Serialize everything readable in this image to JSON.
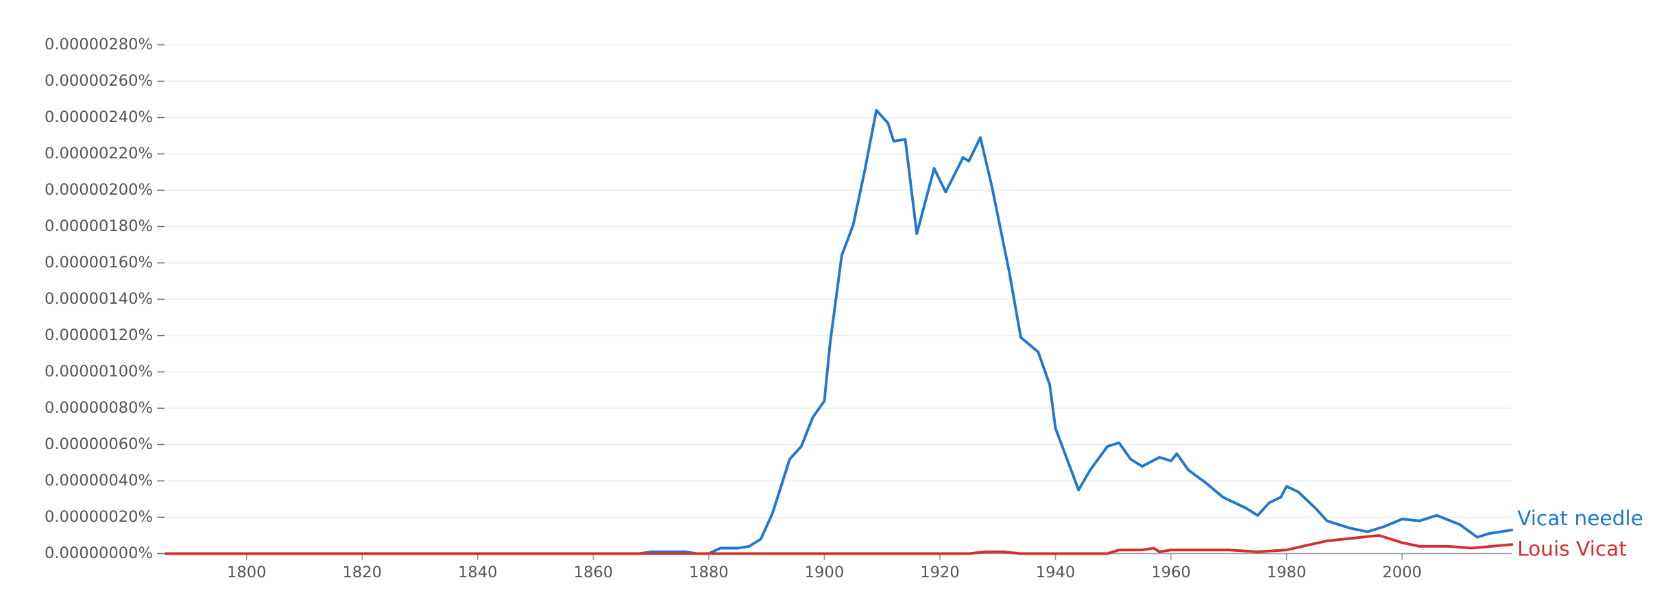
{
  "chart_data": {
    "type": "line",
    "xlim": [
      1786,
      2019
    ],
    "xticks": [
      1800,
      1820,
      1840,
      1860,
      1880,
      1900,
      1920,
      1940,
      1960,
      1980,
      2000
    ],
    "ylim": [
      0,
      2.8e-06
    ],
    "yticks": [
      {
        "value": 0,
        "label": "0.00000000%"
      },
      {
        "value": 2e-07,
        "label": "0.00000020%"
      },
      {
        "value": 4e-07,
        "label": "0.00000040%"
      },
      {
        "value": 6e-07,
        "label": "0.00000060%"
      },
      {
        "value": 8e-07,
        "label": "0.00000080%"
      },
      {
        "value": 1e-06,
        "label": "0.00000100%"
      },
      {
        "value": 1.2e-06,
        "label": "0.00000120%"
      },
      {
        "value": 1.4e-06,
        "label": "0.00000140%"
      },
      {
        "value": 1.6e-06,
        "label": "0.00000160%"
      },
      {
        "value": 1.8e-06,
        "label": "0.00000180%"
      },
      {
        "value": 2e-06,
        "label": "0.00000200%"
      },
      {
        "value": 2.2e-06,
        "label": "0.00000220%"
      },
      {
        "value": 2.4e-06,
        "label": "0.00000240%"
      },
      {
        "value": 2.6e-06,
        "label": "0.00000260%"
      },
      {
        "value": 2.8e-06,
        "label": "0.00000280%"
      }
    ],
    "grid": true,
    "series": [
      {
        "name": "Vicat needle",
        "color": "#1f77d2",
        "x": [
          1786,
          1868,
          1870,
          1876,
          1878,
          1880,
          1882,
          1885,
          1887,
          1889,
          1891,
          1894,
          1896,
          1898,
          1900,
          1901,
          1903,
          1905,
          1907,
          1909,
          1911,
          1912,
          1914,
          1916,
          1919,
          1921,
          1924,
          1925,
          1927,
          1929,
          1932,
          1934,
          1937,
          1939,
          1940,
          1944,
          1946,
          1949,
          1951,
          1953,
          1955,
          1958,
          1960,
          1961,
          1963,
          1966,
          1969,
          1973,
          1975,
          1977,
          1979,
          1980,
          1982,
          1985,
          1987,
          1991,
          1994,
          1997,
          2000,
          2003,
          2006,
          2010,
          2013,
          2015,
          2019
        ],
        "values": [
          0,
          0,
          1e-08,
          1e-08,
          0,
          0,
          3e-08,
          3e-08,
          4e-08,
          8e-08,
          2.2e-07,
          5.2e-07,
          5.9e-07,
          7.5e-07,
          8.4e-07,
          1.16e-06,
          1.64e-06,
          1.81e-06,
          2.11e-06,
          2.44e-06,
          2.37e-06,
          2.27e-06,
          2.28e-06,
          1.76e-06,
          2.12e-06,
          1.99e-06,
          2.18e-06,
          2.16e-06,
          2.29e-06,
          2.02e-06,
          1.55e-06,
          1.19e-06,
          1.11e-06,
          9.3e-07,
          6.9e-07,
          3.5e-07,
          4.6e-07,
          5.9e-07,
          6.1e-07,
          5.2e-07,
          4.8e-07,
          5.3e-07,
          5.1e-07,
          5.5e-07,
          4.6e-07,
          3.9e-07,
          3.1e-07,
          2.5e-07,
          2.1e-07,
          2.8e-07,
          3.1e-07,
          3.7e-07,
          3.4e-07,
          2.5e-07,
          1.8e-07,
          1.4e-07,
          1.2e-07,
          1.5e-07,
          1.9e-07,
          1.8e-07,
          2.1e-07,
          1.6e-07,
          9e-08,
          1.1e-07,
          1.3e-07
        ]
      },
      {
        "name": "Louis Vicat",
        "color": "#d32f2f",
        "x": [
          1786,
          1925,
          1928,
          1931,
          1934,
          1949,
          1951,
          1955,
          1957,
          1958,
          1960,
          1966,
          1970,
          1975,
          1980,
          1987,
          1993,
          1996,
          2000,
          2003,
          2008,
          2012,
          2019
        ],
        "values": [
          0,
          0,
          1e-08,
          1e-08,
          0,
          0,
          2e-08,
          2e-08,
          3e-08,
          1e-08,
          2e-08,
          2e-08,
          2e-08,
          1e-08,
          2e-08,
          7e-08,
          9e-08,
          1e-07,
          6e-08,
          4e-08,
          4e-08,
          3e-08,
          5e-08
        ]
      }
    ]
  }
}
